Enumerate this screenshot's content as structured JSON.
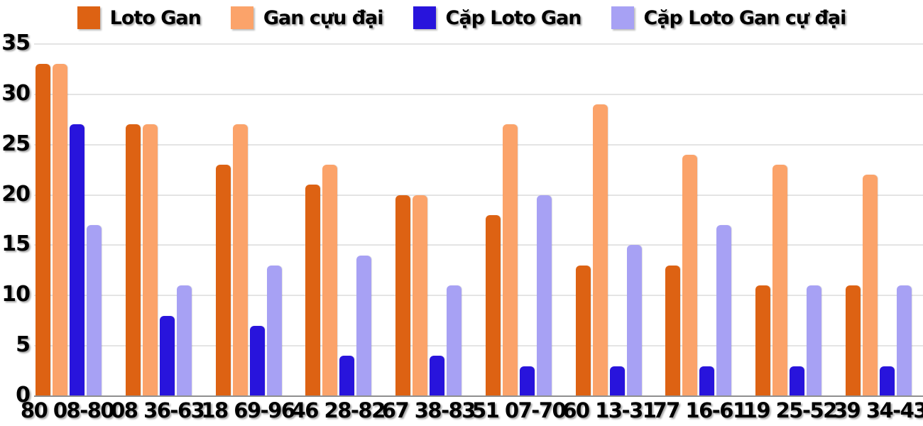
{
  "chart_data": {
    "type": "bar",
    "title": "",
    "xlabel": "",
    "ylabel": "",
    "categories": [
      "80 08-80",
      "08 36-63",
      "18 69-96",
      "46 28-82",
      "67 38-83",
      "51 07-70",
      "60 13-31",
      "77 16-61",
      "19 25-52",
      "39 34-43"
    ],
    "series": [
      {
        "name": "Loto Gan",
        "color": "#dd6213",
        "values": [
          33,
          27,
          23,
          21,
          20,
          18,
          13,
          13,
          11,
          11
        ]
      },
      {
        "name": "Gan cựu đại",
        "color": "#fba36a",
        "values": [
          33,
          27,
          27,
          23,
          20,
          27,
          29,
          24,
          23,
          22
        ]
      },
      {
        "name": "Cặp Loto Gan",
        "color": "#2814dc",
        "values": [
          27,
          8,
          7,
          4,
          4,
          3,
          3,
          3,
          3,
          3
        ]
      },
      {
        "name": "Cặp Loto Gan cự đại",
        "color": "#a7a1f4",
        "values": [
          17,
          11,
          13,
          14,
          11,
          20,
          15,
          17,
          11,
          11
        ]
      }
    ],
    "ylim": [
      0,
      35
    ],
    "yticks": [
      0,
      5,
      10,
      15,
      20,
      25,
      30,
      35
    ],
    "grid": true,
    "gridline_color": "#e4e4e4",
    "baseline_color": "#8f8f8f",
    "legend_position": "top",
    "background_color": "#ffffff",
    "text_color": "#000000"
  }
}
